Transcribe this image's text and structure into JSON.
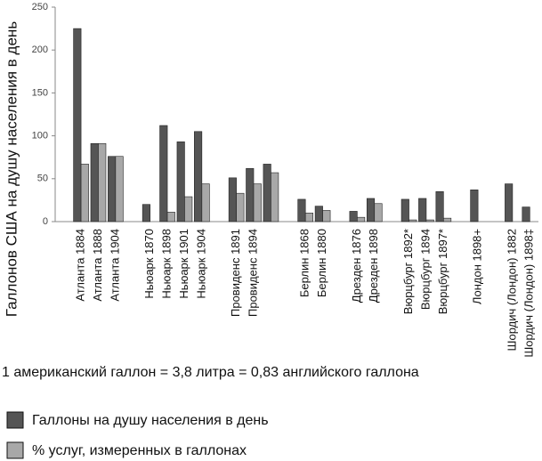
{
  "chart_data": {
    "type": "bar",
    "y_label": "Галлонов США на душу населения в день",
    "note": "1 американский галлон = 3,8 литра = 0,83 английского галлона",
    "categories": [
      null,
      "Атланта 1884",
      "Атланта 1888",
      "Атланта 1904",
      null,
      "Ньюарк 1870",
      "Ньюарк 1898",
      "Ньюарк 1901",
      "Ньюарк 1904",
      null,
      "Провиденс 1891",
      "Провиденс 1894",
      null,
      null,
      "Берлин 1868",
      "Берлин 1880",
      null,
      "Дрезден 1876",
      "Дрезден 1898",
      null,
      "Вюрцбург 1892*",
      "Вюрцбург 1894",
      "Вюрцбург 1897*",
      null,
      "Лондон 1898+",
      null,
      "Шордич (Лондон) 1882",
      "Шордич (Лондон) 1898‡"
    ],
    "series": [
      {
        "name": "Галлоны на душу населения в день",
        "color": "#555555",
        "values": [
          null,
          225,
          91,
          76,
          null,
          20,
          112,
          93,
          105,
          null,
          51,
          62,
          67,
          null,
          26,
          18,
          null,
          12,
          27,
          null,
          26,
          27,
          35,
          null,
          37,
          null,
          44,
          17
        ]
      },
      {
        "name": "% услуг, измеренных в галлонах",
        "color": "#a8a8a8",
        "values": [
          null,
          67,
          91,
          76,
          null,
          null,
          11,
          29,
          44,
          null,
          33,
          44,
          57,
          null,
          10,
          13,
          null,
          5,
          21,
          null,
          2,
          2,
          4,
          null,
          null,
          null,
          null,
          null
        ]
      }
    ],
    "ylim": [
      0,
      250
    ],
    "yticks": [
      0,
      50,
      100,
      150,
      200,
      250
    ],
    "grid": false
  }
}
